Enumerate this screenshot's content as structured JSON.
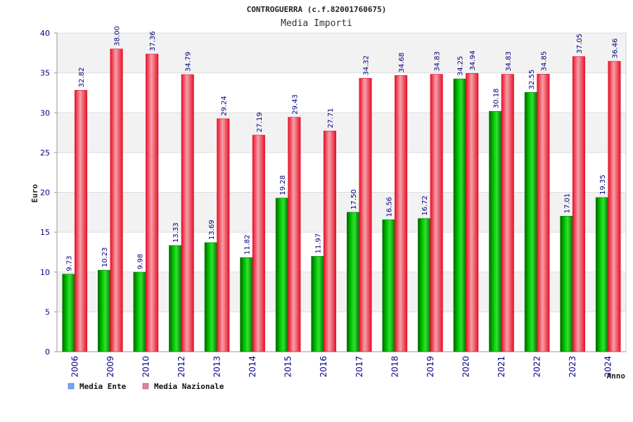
{
  "chart_data": {
    "type": "bar",
    "title": "CONTROGUERRA (c.f.82001760675)",
    "subtitle": "Media Importi",
    "xlabel": "Anno",
    "ylabel": "Euro",
    "ylim": [
      0,
      40
    ],
    "yticks": [
      "0",
      "5",
      "10",
      "15",
      "20",
      "25",
      "30",
      "35",
      "40"
    ],
    "categories": [
      "2006",
      "2009",
      "2010",
      "2012",
      "2013",
      "2014",
      "2015",
      "2016",
      "2017",
      "2018",
      "2019",
      "2020",
      "2021",
      "2022",
      "2023",
      "2024"
    ],
    "series": [
      {
        "name": "Media Ente",
        "color": "#00b000",
        "legend_color": "#6fa8ff",
        "values": [
          9.73,
          10.23,
          9.98,
          13.33,
          13.69,
          11.82,
          19.28,
          11.97,
          17.5,
          16.56,
          16.72,
          34.25,
          30.18,
          32.55,
          17.01,
          19.35
        ],
        "labels": [
          "9.73",
          "10.23",
          "9.98",
          "13.33",
          "13.69",
          "11.82",
          "19.28",
          "11.97",
          "17.50",
          "16.56",
          "16.72",
          "34.25",
          "30.18",
          "32.55",
          "17.01",
          "19.35"
        ]
      },
      {
        "name": "Media Nazionale",
        "color": "#e8102a",
        "legend_color": "#e07fa8",
        "values": [
          32.82,
          38.0,
          37.36,
          34.79,
          29.24,
          27.19,
          29.43,
          27.71,
          34.32,
          34.68,
          34.83,
          34.94,
          34.83,
          34.85,
          37.05,
          36.46
        ],
        "labels": [
          "32.82",
          "38.00",
          "37.36",
          "34.79",
          "29.24",
          "27.19",
          "29.43",
          "27.71",
          "34.32",
          "34.68",
          "34.83",
          "34.94",
          "34.83",
          "34.85",
          "37.05",
          "36.46"
        ]
      }
    ],
    "grid": true,
    "legend_position": "bottom-left"
  }
}
